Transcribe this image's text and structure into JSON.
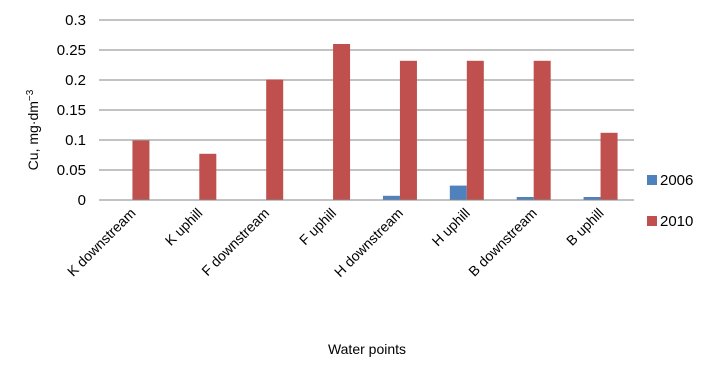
{
  "chart_data": {
    "type": "bar",
    "categories": [
      "K downstream",
      "K uphill",
      "F downstream",
      "F uphill",
      "H downstream",
      "H uphill",
      "B downstream",
      "B uphill"
    ],
    "series": [
      {
        "name": "2006",
        "color": "#4F81BD",
        "values": [
          0,
          0,
          0,
          0,
          0.007,
          0.024,
          0.005,
          0.005
        ]
      },
      {
        "name": "2010",
        "color": "#C0504D",
        "values": [
          0.099,
          0.077,
          0.201,
          0.26,
          0.232,
          0.232,
          0.232,
          0.112
        ]
      }
    ],
    "xlabel": "Water points",
    "ylabel_main": "Cu, mg·dm",
    "ylabel_sup": "−3",
    "ylim": [
      0,
      0.3
    ],
    "yticks": [
      "0",
      "0.05",
      "0.1",
      "0.15",
      "0.2",
      "0.25",
      "0.3"
    ],
    "grid": true,
    "legend_position": "right"
  }
}
